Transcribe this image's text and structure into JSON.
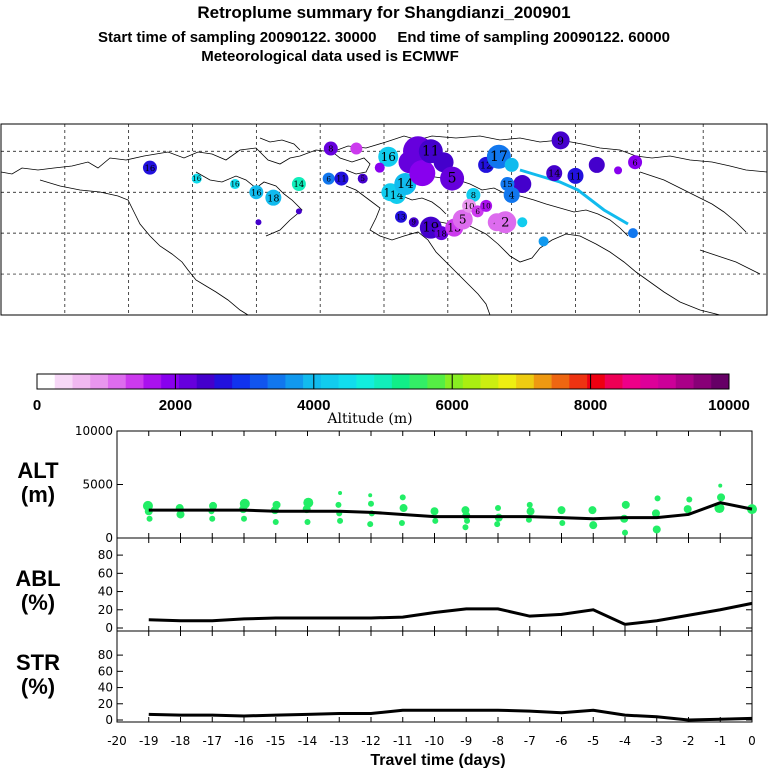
{
  "header": {
    "title": "Retroplume summary for Shangdianzi_200901",
    "line2": "Start time of sampling 20090122. 30000     End time of sampling 20090122. 60000",
    "line3": "Meteorological data used is ECMWF"
  },
  "colorbar": {
    "label": "Altitude (m)",
    "ticks": [
      "0",
      "2000",
      "4000",
      "6000",
      "8000",
      "10000"
    ],
    "colors": [
      "#ffffff",
      "#f7d8f7",
      "#f0b8f0",
      "#e896ee",
      "#dd6cee",
      "#cc3aee",
      "#aa11ee",
      "#8800ee",
      "#6600dd",
      "#4400cc",
      "#2211dd",
      "#1133ee",
      "#1155ee",
      "#1177ee",
      "#1199ee",
      "#11bbee",
      "#11ccee",
      "#11ddee",
      "#11eedd",
      "#11eebb",
      "#11ee88",
      "#33ee66",
      "#55ee44",
      "#88ee22",
      "#aaee11",
      "#ccee11",
      "#eeee11",
      "#eecc11",
      "#ee9911",
      "#ee6611",
      "#ee3311",
      "#ee0011",
      "#ee0055",
      "#ee0088",
      "#dd0099",
      "#cc0099",
      "#aa0088",
      "#880077",
      "#660066"
    ]
  },
  "chart_data": [
    {
      "type": "scatter",
      "title": "ALT",
      "ylabel": "(m)",
      "ylim": [
        0,
        10000
      ],
      "yticks": [
        "0",
        "5000",
        "10000"
      ],
      "xlim": [
        -20,
        0
      ],
      "mean_line": {
        "x": [
          -19,
          -18,
          -17,
          -16,
          -15,
          -14,
          -13,
          -12,
          -11,
          -10,
          -9,
          -8,
          -7,
          -6,
          -5,
          -4,
          -3,
          -2,
          -1,
          0
        ],
        "y": [
          2600,
          2600,
          2600,
          2600,
          2500,
          2500,
          2500,
          2400,
          2200,
          2000,
          2000,
          2000,
          2000,
          1900,
          1800,
          1900,
          1900,
          2200,
          3300,
          2700
        ]
      },
      "dots": {
        "x": [
          -19,
          -19,
          -19,
          -18,
          -18,
          -17,
          -17,
          -17,
          -16,
          -16,
          -16,
          -15,
          -15,
          -15,
          -14,
          -14,
          -14,
          -13,
          -13,
          -13,
          -13,
          -12,
          -12,
          -12,
          -12,
          -11,
          -11,
          -11,
          -10,
          -10,
          -9,
          -9,
          -9,
          -9,
          -8,
          -8,
          -8,
          -7,
          -7,
          -7,
          -6,
          -6,
          -5,
          -5,
          -4,
          -4,
          -4,
          -3,
          -3,
          -3,
          -2,
          -2,
          -1,
          -1,
          -1,
          0
        ],
        "y": [
          3000,
          2500,
          1800,
          2800,
          2200,
          3000,
          2500,
          1800,
          3200,
          2700,
          1800,
          3100,
          2600,
          1500,
          3300,
          2700,
          1500,
          4200,
          3100,
          2300,
          1600,
          4000,
          3200,
          2300,
          1300,
          3800,
          2800,
          1400,
          2500,
          1600,
          2600,
          2100,
          1600,
          1000,
          2800,
          1900,
          1300,
          3100,
          2500,
          1700,
          2600,
          1400,
          2600,
          1200,
          3100,
          1800,
          500,
          3700,
          2300,
          800,
          3600,
          2700,
          4900,
          3800,
          2800,
          2700
        ],
        "s": [
          5,
          4,
          3,
          4,
          4,
          4,
          3,
          3,
          5,
          4,
          3,
          4,
          4,
          3,
          5,
          4,
          3,
          2,
          3,
          3,
          3,
          2,
          3,
          3,
          3,
          3,
          4,
          3,
          4,
          3,
          4,
          4,
          3,
          3,
          3,
          4,
          3,
          3,
          4,
          3,
          4,
          3,
          4,
          4,
          4,
          4,
          3,
          3,
          4,
          4,
          3,
          4,
          2,
          4,
          5,
          5
        ]
      }
    },
    {
      "type": "line",
      "title": "ABL",
      "ylabel": "(%)",
      "ylim": [
        0,
        90
      ],
      "yticks": [
        "0",
        "20",
        "40",
        "60",
        "80"
      ],
      "xlim": [
        -20,
        0
      ],
      "x": [
        -19,
        -18,
        -17,
        -16,
        -15,
        -14,
        -13,
        -12,
        -11,
        -10,
        -9,
        -8,
        -7,
        -6,
        -5,
        -4,
        -3,
        -2,
        -1,
        0
      ],
      "y": [
        9,
        8,
        8,
        10,
        11,
        11,
        11,
        11,
        12,
        17,
        21,
        21,
        13,
        15,
        20,
        4,
        8,
        14,
        20,
        27
      ]
    },
    {
      "type": "line",
      "title": "STR",
      "ylabel": "(%)",
      "ylim": [
        0,
        90
      ],
      "yticks": [
        "0",
        "20",
        "40",
        "60",
        "80"
      ],
      "xlim": [
        -20,
        0
      ],
      "x": [
        -19,
        -18,
        -17,
        -16,
        -15,
        -14,
        -13,
        -12,
        -11,
        -10,
        -9,
        -8,
        -7,
        -6,
        -5,
        -4,
        -3,
        -2,
        -1,
        0
      ],
      "y": [
        7,
        6,
        6,
        5,
        6,
        7,
        8,
        8,
        12,
        12,
        12,
        12,
        11,
        9,
        12,
        6,
        4,
        0,
        1,
        2
      ],
      "xlabel": "Travel time (days)",
      "xticks": [
        "-20",
        "-19",
        "-18",
        "-17",
        "-16",
        "-15",
        "-14",
        "-13",
        "-12",
        "-11",
        "-10",
        "-9",
        "-8",
        "-7",
        "-6",
        "-5",
        "-4",
        "-3",
        "-2",
        "-1",
        "0"
      ]
    }
  ],
  "map": {
    "markers": [
      {
        "lon": 2,
        "lat": 68,
        "label": "16",
        "color": "#11ccee",
        "size": 10
      },
      {
        "lon": 3,
        "lat": 55,
        "label": "15",
        "color": "#11ccee",
        "size": 9
      },
      {
        "lon": 6,
        "lat": 54,
        "label": "14",
        "color": "#11ccee",
        "size": 9
      },
      {
        "lon": 10,
        "lat": 58,
        "label": "14",
        "color": "#11bbee",
        "size": 11
      },
      {
        "lon": 12,
        "lat": 66,
        "label": "",
        "color": "#6600dd",
        "size": 11
      },
      {
        "lon": 16,
        "lat": 70,
        "label": "",
        "color": "#6600dd",
        "size": 15
      },
      {
        "lon": 18,
        "lat": 62,
        "label": "",
        "color": "#8800ee",
        "size": 13
      },
      {
        "lon": 22,
        "lat": 70,
        "label": "11",
        "color": "#4400cc",
        "size": 12
      },
      {
        "lon": 28,
        "lat": 66,
        "label": "",
        "color": "#4400cc",
        "size": 10
      },
      {
        "lon": 32,
        "lat": 60,
        "label": "5",
        "color": "#6600dd",
        "size": 12
      },
      {
        "lon": 42,
        "lat": 54,
        "label": "8",
        "color": "#11ccee",
        "size": 7
      },
      {
        "lon": 48,
        "lat": 65,
        "label": "12",
        "color": "#2211dd",
        "size": 8
      },
      {
        "lon": 54,
        "lat": 68,
        "label": "17",
        "color": "#1177ee",
        "size": 12
      },
      {
        "lon": 60,
        "lat": 65,
        "label": "",
        "color": "#11bbee",
        "size": 7
      },
      {
        "lon": 65,
        "lat": 58,
        "label": "",
        "color": "#4400cc",
        "size": 9
      },
      {
        "lon": 80,
        "lat": 62,
        "label": "14",
        "color": "#4400cc",
        "size": 8
      },
      {
        "lon": 83,
        "lat": 74,
        "label": "9",
        "color": "#4400cc",
        "size": 9
      },
      {
        "lon": 90,
        "lat": 61,
        "label": "11",
        "color": "#2211dd",
        "size": 8
      },
      {
        "lon": 100,
        "lat": 65,
        "label": "",
        "color": "#4400cc",
        "size": 8
      },
      {
        "lon": 110,
        "lat": 63,
        "label": "",
        "color": "#8800ee",
        "size": 4
      },
      {
        "lon": 118,
        "lat": 66,
        "label": "6",
        "color": "#8800ee",
        "size": 7
      },
      {
        "lon": -110,
        "lat": 64,
        "label": "16",
        "color": "#2211dd",
        "size": 7
      },
      {
        "lon": -88,
        "lat": 60,
        "label": "16",
        "color": "#11ddee",
        "size": 5
      },
      {
        "lon": -70,
        "lat": 58,
        "label": "16",
        "color": "#11ddee",
        "size": 5
      },
      {
        "lon": -60,
        "lat": 55,
        "label": "16",
        "color": "#11bbee",
        "size": 7
      },
      {
        "lon": -52,
        "lat": 53,
        "label": "18",
        "color": "#11bbee",
        "size": 8
      },
      {
        "lon": -40,
        "lat": 58,
        "label": "14",
        "color": "#11eebb",
        "size": 7
      },
      {
        "lon": -26,
        "lat": 60,
        "label": "6",
        "color": "#1177ee",
        "size": 6
      },
      {
        "lon": -20,
        "lat": 60,
        "label": "11",
        "color": "#2211dd",
        "size": 7
      },
      {
        "lon": -10,
        "lat": 60,
        "label": "5",
        "color": "#4400cc",
        "size": 5
      },
      {
        "lon": -40,
        "lat": 48,
        "label": "",
        "color": "#4400cc",
        "size": 3
      },
      {
        "lon": -25,
        "lat": 71,
        "label": "8",
        "color": "#6600dd",
        "size": 7
      },
      {
        "lon": -13,
        "lat": 71,
        "label": "",
        "color": "#cc3aee",
        "size": 6
      },
      {
        "lon": -2,
        "lat": 64,
        "label": "",
        "color": "#8800ee",
        "size": 5
      },
      {
        "lon": 8,
        "lat": 46,
        "label": "13",
        "color": "#2211dd",
        "size": 6
      },
      {
        "lon": 14,
        "lat": 44,
        "label": "9",
        "color": "#4400cc",
        "size": 5
      },
      {
        "lon": 22,
        "lat": 42,
        "label": "19",
        "color": "#4400cc",
        "size": 11
      },
      {
        "lon": 27,
        "lat": 40,
        "label": "18",
        "color": "#6600dd",
        "size": 7
      },
      {
        "lon": 33,
        "lat": 42,
        "label": "13",
        "color": "#cc3aee",
        "size": 9
      },
      {
        "lon": 37,
        "lat": 45,
        "label": "5",
        "color": "#dd6cee",
        "size": 10
      },
      {
        "lon": 40,
        "lat": 50,
        "label": "10",
        "color": "#e896ee",
        "size": 7
      },
      {
        "lon": 44,
        "lat": 48,
        "label": "6",
        "color": "#cc3aee",
        "size": 6
      },
      {
        "lon": 48,
        "lat": 50,
        "label": "10",
        "color": "#aa11ee",
        "size": 6
      },
      {
        "lon": 53,
        "lat": 44,
        "label": "4",
        "color": "#dd6cee",
        "size": 9
      },
      {
        "lon": 57,
        "lat": 44,
        "label": "2",
        "color": "#dd6cee",
        "size": 11
      },
      {
        "lon": 60,
        "lat": 54,
        "label": "4",
        "color": "#1177ee",
        "size": 8
      },
      {
        "lon": 58,
        "lat": 58,
        "label": "15",
        "color": "#1177ee",
        "size": 7
      },
      {
        "lon": 65,
        "lat": 44,
        "label": "",
        "color": "#11ccee",
        "size": 5
      },
      {
        "lon": 75,
        "lat": 37,
        "label": "",
        "color": "#1199ee",
        "size": 5
      },
      {
        "lon": 117,
        "lat": 40,
        "label": "",
        "color": "#1177ee",
        "size": 5
      },
      {
        "lon": -59,
        "lat": 44,
        "label": "",
        "color": "#4400cc",
        "size": 3
      }
    ]
  }
}
